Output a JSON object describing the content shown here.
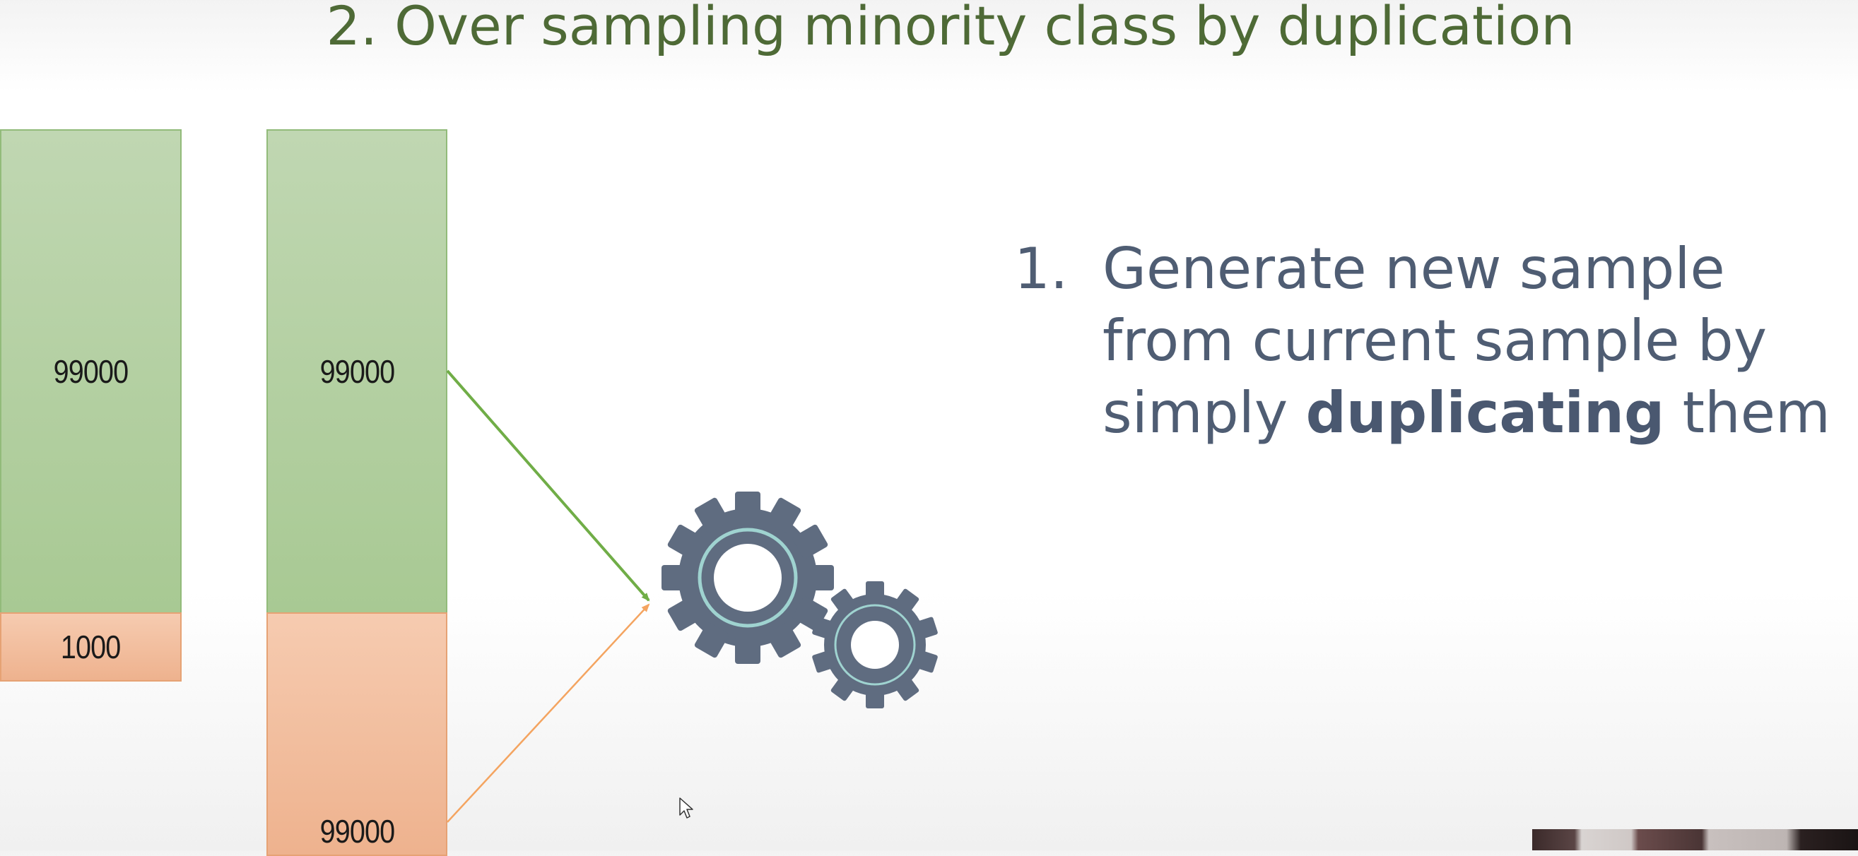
{
  "slide": {
    "title": "2. Over sampling minority class by duplication"
  },
  "left_bar": {
    "majority_value": "99000",
    "minority_value": "1000",
    "majority_color": "#a8c993",
    "minority_color": "#eeb28e"
  },
  "right_bar": {
    "majority_value": "99000",
    "minority_value": "99000"
  },
  "arrows": {
    "from_majority_color": "#70ad47",
    "from_minority_color": "#f4a460"
  },
  "steps": [
    {
      "number": "1.",
      "text_before": "Generate new sample from current sample by simply ",
      "text_bold": "duplicating",
      "text_after": " them"
    }
  ],
  "icons": {
    "process": "gears-icon",
    "pointer": "mouse-cursor-icon"
  },
  "colors": {
    "title": "#4e6a36",
    "body_text": "#4f5d73",
    "gear": "#5f6c80",
    "gear_ring": "#9fd3d0"
  }
}
